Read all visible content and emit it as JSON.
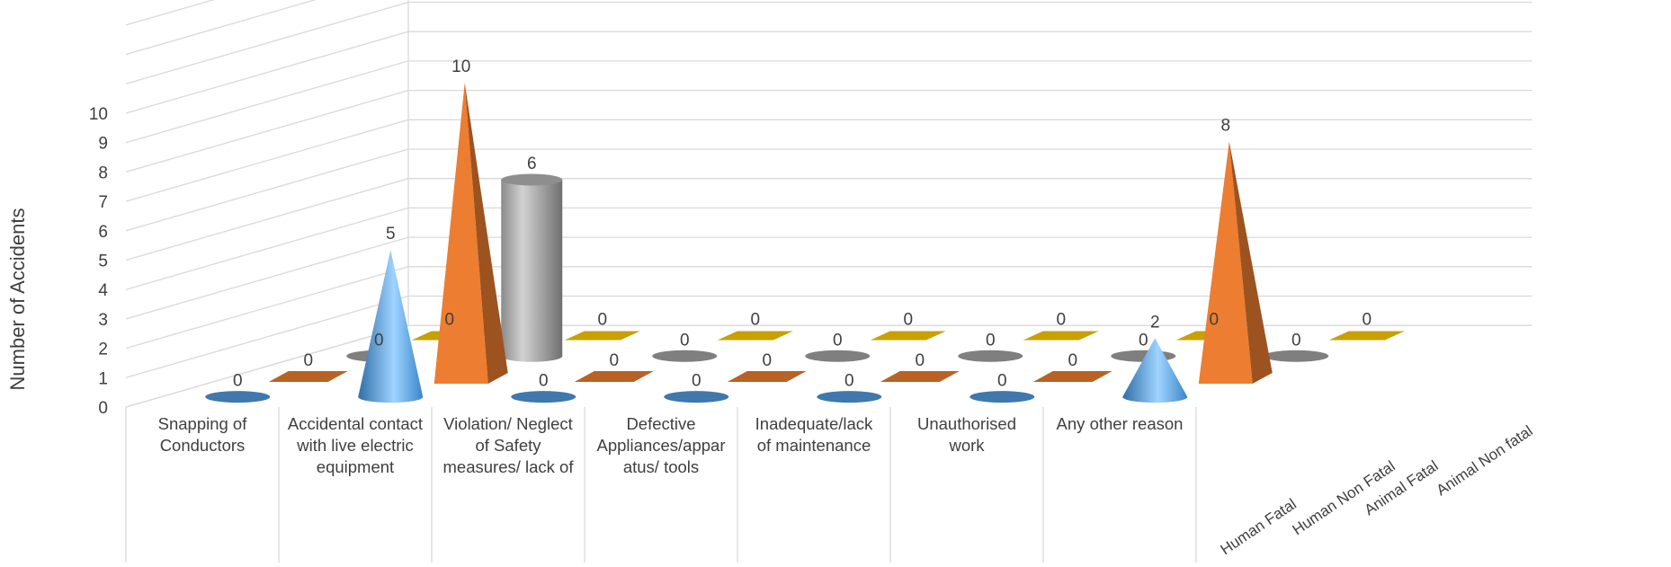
{
  "chart_data": {
    "type": "bar",
    "style": "3d",
    "ylabel": "Number of Accidents",
    "xlabel": "",
    "ylim": [
      0,
      10
    ],
    "y_ticks": [
      0,
      1,
      2,
      3,
      4,
      5,
      6,
      7,
      8,
      9,
      10
    ],
    "grid": true,
    "categories": [
      [
        "Snapping of",
        "Conductors"
      ],
      [
        "Accidental contact",
        "with live electric",
        "equipment"
      ],
      [
        "Violation/ Neglect",
        "of Safety",
        "measures/ lack of"
      ],
      [
        "Defective",
        "Appliances/appar",
        "atus/ tools"
      ],
      [
        "Inadequate/lack",
        "of maintenance"
      ],
      [
        "Unauthorised",
        "work"
      ],
      [
        "Any other reason"
      ]
    ],
    "series": [
      {
        "name": "Human Fatal",
        "color": "#5b9bd5",
        "shape": "cone",
        "values": [
          0,
          5,
          0,
          0,
          0,
          0,
          2
        ]
      },
      {
        "name": "Human Non Fatal",
        "color": "#ed7d31",
        "shape": "pyramid",
        "values": [
          0,
          10,
          0,
          0,
          0,
          0,
          8
        ]
      },
      {
        "name": "Animal Fatal",
        "color": "#a5a5a5",
        "shape": "cylinder",
        "values": [
          0,
          6,
          0,
          0,
          0,
          0,
          0
        ]
      },
      {
        "name": "Animal Non fatal",
        "color": "#c8a000",
        "shape": "box",
        "values": [
          0,
          0,
          0,
          0,
          0,
          0,
          0
        ]
      }
    ]
  }
}
